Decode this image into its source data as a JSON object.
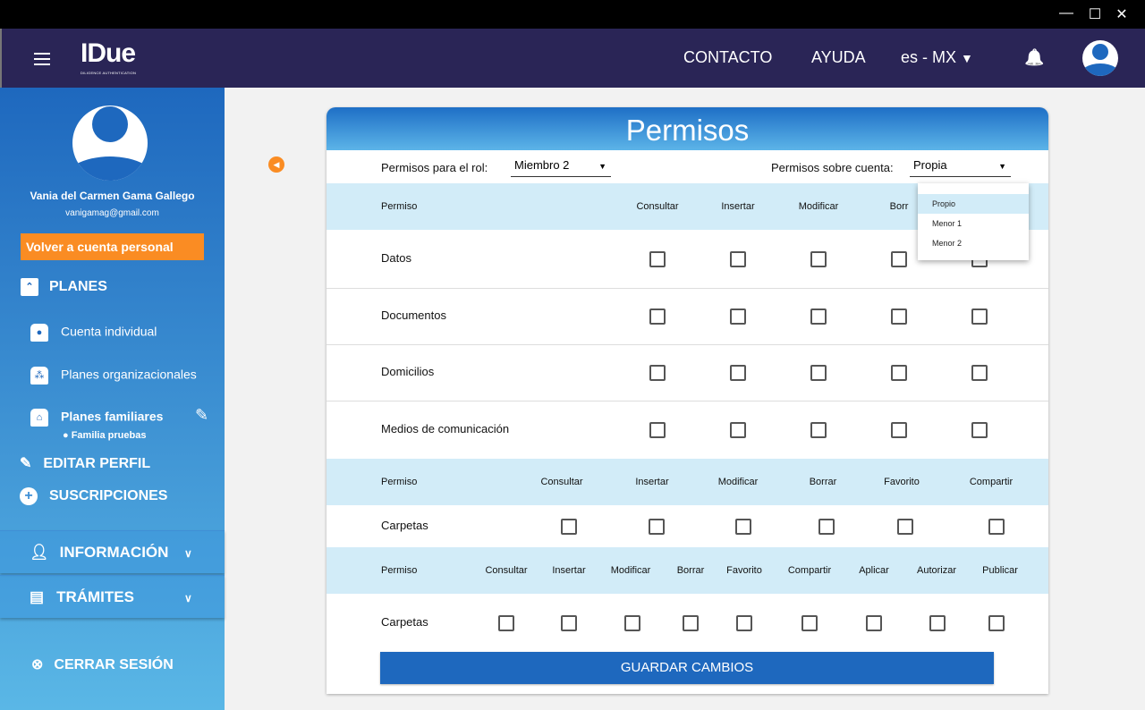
{
  "window": {
    "minimize": "—",
    "maximize": "☐",
    "close": "✕"
  },
  "header": {
    "logo": "IDue",
    "logo_sub": "DILIGENCE AUTHENTICATION",
    "contact": "CONTACTO",
    "help": "AYUDA",
    "language": "es - MX",
    "bell": "🔔"
  },
  "sidebar": {
    "user_name": "Vania del Carmen Gama Gallego",
    "user_email": "vanigamag@gmail.com",
    "back_button": "Volver a cuenta personal",
    "plans": "PLANES",
    "individual": "Cuenta individual",
    "organizational": "Planes organizacionales",
    "family": "Planes familiares",
    "family_item": "● Familia pruebas",
    "edit_profile": "EDITAR PERFIL",
    "subscriptions": "SUSCRIPCIONES",
    "information": "INFORMACIÓN",
    "procedures": "TRÁMITES",
    "logout": "CERRAR SESIÓN"
  },
  "main": {
    "title": "Permisos",
    "role_label": "Permisos para el rol:",
    "role_value": "Miembro 2",
    "account_label": "Permisos sobre cuenta:",
    "account_value": "Propia",
    "account_options": [
      {
        "label": "Propio",
        "highlighted": true
      },
      {
        "label": "Menor 1"
      },
      {
        "label": "Menor 2"
      }
    ],
    "tables": [
      {
        "columns": [
          "Permiso",
          "Consultar",
          "Insertar",
          "Modificar",
          "Borr",
          ""
        ],
        "rows": [
          {
            "label": "Datos",
            "checked": [
              false,
              false,
              false,
              false,
              false
            ]
          },
          {
            "label": "Documentos",
            "checked": [
              false,
              false,
              false,
              false,
              false
            ]
          },
          {
            "label": "Domicilios",
            "checked": [
              false,
              false,
              false,
              false,
              false
            ]
          },
          {
            "label": "Medios de comunicación",
            "checked": [
              false,
              false,
              false,
              false,
              false
            ]
          }
        ]
      },
      {
        "columns": [
          "Permiso",
          "Consultar",
          "Insertar",
          "Modificar",
          "Borrar",
          "Favorito",
          "Compartir"
        ],
        "rows": [
          {
            "label": "Carpetas",
            "checked": [
              false,
              false,
              false,
              false,
              false,
              false
            ]
          }
        ]
      },
      {
        "columns": [
          "Permiso",
          "Consultar",
          "Insertar",
          "Modificar",
          "Borrar",
          "Favorito",
          "Compartir",
          "Aplicar",
          "Autorizar",
          "Publicar"
        ],
        "rows": [
          {
            "label": "Carpetas",
            "checked": [
              false,
              false,
              false,
              false,
              false,
              false,
              false,
              false,
              false
            ]
          }
        ]
      }
    ],
    "save": "GUARDAR CAMBIOS"
  },
  "colors": {
    "header": "#2a2556",
    "accent": "#fa8c23",
    "primary": "#1e68be",
    "band": "#d2ecf8"
  }
}
